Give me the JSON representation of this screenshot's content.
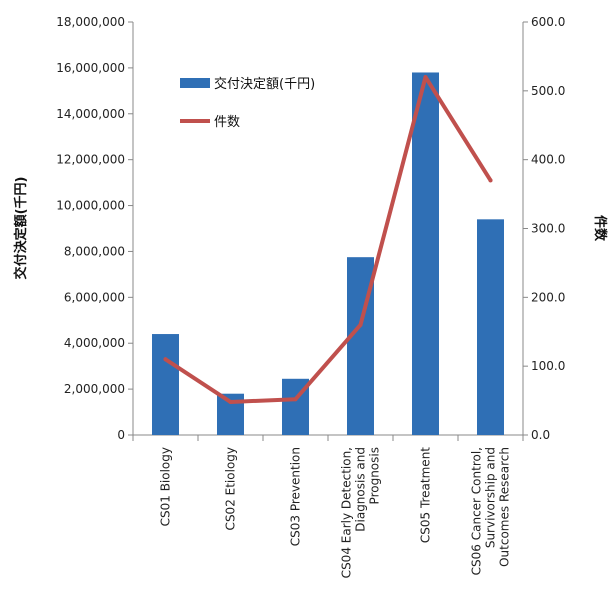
{
  "chart_data": {
    "type": "bar",
    "categories": [
      "CS01 Biology",
      "CS02 Etiology",
      "CS03 Prevention",
      "CS04 Early Detection, Diagnosis and Prognosis",
      "CS05 Treatment",
      "CS06 Cancer Control, Survivorship and Outcomes Research"
    ],
    "category_label_lines": [
      [
        "CS01 Biology"
      ],
      [
        "CS02 Etiology"
      ],
      [
        "CS03 Prevention"
      ],
      [
        "CS04 Early Detection,",
        "Diagnosis and",
        "Prognosis"
      ],
      [
        "CS05 Treatment"
      ],
      [
        "CS06 Cancer Control,",
        "Survivorship and",
        "Outcomes Research"
      ]
    ],
    "series": [
      {
        "name": "交付決定額(千円)",
        "type": "bar",
        "axis": "left",
        "color": "#2f6fb5",
        "values": [
          4400000,
          1800000,
          2450000,
          7750000,
          15800000,
          9400000
        ]
      },
      {
        "name": "件数",
        "type": "line",
        "axis": "right",
        "color": "#c0504d",
        "values": [
          110,
          48,
          52,
          160,
          520,
          370
        ]
      }
    ],
    "ylabel": "交付決定額(千円)",
    "y2label": "件数",
    "ylim": [
      0,
      18000000
    ],
    "y2lim": [
      0,
      600
    ],
    "yticks": [
      "0",
      "2,000,000",
      "4,000,000",
      "6,000,000",
      "8,000,000",
      "10,000,000",
      "12,000,000",
      "14,000,000",
      "16,000,000",
      "18,000,000"
    ],
    "y2ticks": [
      "0.0",
      "100.0",
      "200.0",
      "300.0",
      "400.0",
      "500.0",
      "600.0"
    ],
    "grid": false,
    "legend_position": "top-left"
  }
}
